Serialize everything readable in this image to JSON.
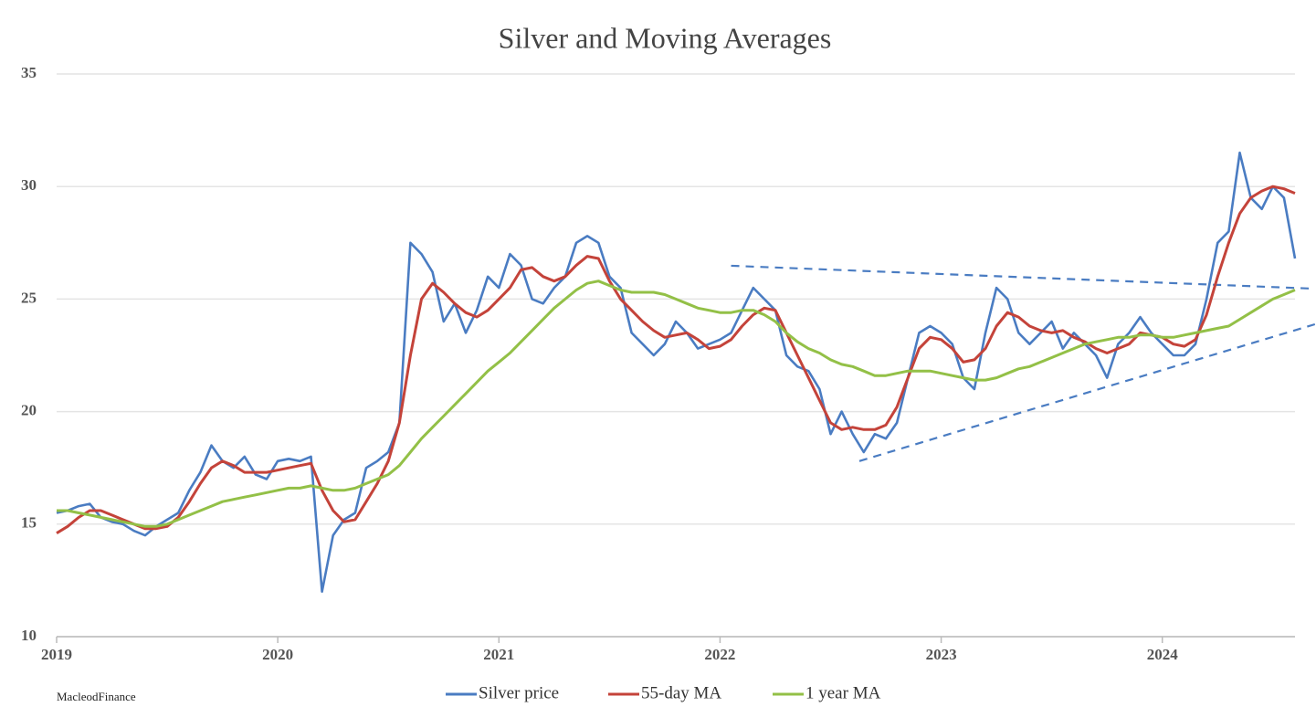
{
  "chart_data": {
    "type": "line",
    "title": "Silver and Moving Averages",
    "source": "MacleodFinance",
    "x": [
      2019.0,
      2019.05,
      2019.1,
      2019.15,
      2019.2,
      2019.25,
      2019.3,
      2019.35,
      2019.4,
      2019.45,
      2019.5,
      2019.55,
      2019.6,
      2019.65,
      2019.7,
      2019.75,
      2019.8,
      2019.85,
      2019.9,
      2019.95,
      2020.0,
      2020.05,
      2020.1,
      2020.15,
      2020.2,
      2020.25,
      2020.3,
      2020.35,
      2020.4,
      2020.45,
      2020.5,
      2020.55,
      2020.6,
      2020.65,
      2020.7,
      2020.75,
      2020.8,
      2020.85,
      2020.9,
      2020.95,
      2021.0,
      2021.05,
      2021.1,
      2021.15,
      2021.2,
      2021.25,
      2021.3,
      2021.35,
      2021.4,
      2021.45,
      2021.5,
      2021.55,
      2021.6,
      2021.65,
      2021.7,
      2021.75,
      2021.8,
      2021.85,
      2021.9,
      2021.95,
      2022.0,
      2022.05,
      2022.1,
      2022.15,
      2022.2,
      2022.25,
      2022.3,
      2022.35,
      2022.4,
      2022.45,
      2022.5,
      2022.55,
      2022.6,
      2022.65,
      2022.7,
      2022.75,
      2022.8,
      2022.85,
      2022.9,
      2022.95,
      2023.0,
      2023.05,
      2023.1,
      2023.15,
      2023.2,
      2023.25,
      2023.3,
      2023.35,
      2023.4,
      2023.45,
      2023.5,
      2023.55,
      2023.6,
      2023.65,
      2023.7,
      2023.75,
      2023.8,
      2023.85,
      2023.9,
      2023.95,
      2024.0,
      2024.05,
      2024.1,
      2024.15,
      2024.2,
      2024.25,
      2024.3,
      2024.35,
      2024.4,
      2024.45,
      2024.5,
      2024.55,
      2024.6
    ],
    "series": [
      {
        "name": "Silver price",
        "color": "#4a7cc2",
        "values": [
          15.5,
          15.6,
          15.8,
          15.9,
          15.3,
          15.1,
          15.0,
          14.7,
          14.5,
          14.9,
          15.2,
          15.5,
          16.5,
          17.3,
          18.5,
          17.8,
          17.5,
          18.0,
          17.2,
          17.0,
          17.8,
          17.9,
          17.8,
          18.0,
          12.0,
          14.5,
          15.2,
          15.5,
          17.5,
          17.8,
          18.2,
          19.5,
          27.5,
          27.0,
          26.2,
          24.0,
          24.8,
          23.5,
          24.5,
          26.0,
          25.5,
          27.0,
          26.5,
          25.0,
          24.8,
          25.5,
          26.0,
          27.5,
          27.8,
          27.5,
          26.0,
          25.5,
          23.5,
          23.0,
          22.5,
          23.0,
          24.0,
          23.5,
          22.8,
          23.0,
          23.2,
          23.5,
          24.5,
          25.5,
          25.0,
          24.5,
          22.5,
          22.0,
          21.8,
          21.0,
          19.0,
          20.0,
          19.0,
          18.2,
          19.0,
          18.8,
          19.5,
          21.5,
          23.5,
          23.8,
          23.5,
          23.0,
          21.5,
          21.0,
          23.5,
          25.5,
          25.0,
          23.5,
          23.0,
          23.5,
          24.0,
          22.8,
          23.5,
          23.0,
          22.5,
          21.5,
          23.0,
          23.5,
          24.2,
          23.5,
          23.0,
          22.5,
          22.5,
          23.0,
          25.0,
          27.5,
          28.0,
          31.5,
          29.5,
          29.0,
          30.0,
          29.5,
          26.8
        ]
      },
      {
        "name": "55-day MA",
        "color": "#c4433a",
        "values": [
          14.6,
          14.9,
          15.3,
          15.6,
          15.6,
          15.4,
          15.2,
          15.0,
          14.8,
          14.8,
          14.9,
          15.3,
          16.0,
          16.8,
          17.5,
          17.8,
          17.6,
          17.3,
          17.3,
          17.3,
          17.4,
          17.5,
          17.6,
          17.7,
          16.5,
          15.6,
          15.1,
          15.2,
          16.0,
          16.8,
          17.8,
          19.5,
          22.5,
          25.0,
          25.7,
          25.3,
          24.8,
          24.4,
          24.2,
          24.5,
          25.0,
          25.5,
          26.3,
          26.4,
          26.0,
          25.8,
          26.0,
          26.5,
          26.9,
          26.8,
          25.8,
          25.0,
          24.5,
          24.0,
          23.6,
          23.3,
          23.4,
          23.5,
          23.2,
          22.8,
          22.9,
          23.2,
          23.8,
          24.3,
          24.6,
          24.5,
          23.5,
          22.5,
          21.5,
          20.5,
          19.5,
          19.2,
          19.3,
          19.2,
          19.2,
          19.4,
          20.2,
          21.5,
          22.8,
          23.3,
          23.2,
          22.8,
          22.2,
          22.3,
          22.8,
          23.8,
          24.4,
          24.2,
          23.8,
          23.6,
          23.5,
          23.6,
          23.3,
          23.1,
          22.8,
          22.6,
          22.8,
          23.0,
          23.5,
          23.4,
          23.3,
          23.0,
          22.9,
          23.2,
          24.3,
          26.0,
          27.5,
          28.8,
          29.5,
          29.8,
          30.0,
          29.9,
          29.7
        ]
      },
      {
        "name": "1 year MA",
        "color": "#93c047",
        "values": [
          15.6,
          15.6,
          15.5,
          15.4,
          15.3,
          15.2,
          15.1,
          15.0,
          14.9,
          14.9,
          15.0,
          15.2,
          15.4,
          15.6,
          15.8,
          16.0,
          16.1,
          16.2,
          16.3,
          16.4,
          16.5,
          16.6,
          16.6,
          16.7,
          16.6,
          16.5,
          16.5,
          16.6,
          16.8,
          17.0,
          17.2,
          17.6,
          18.2,
          18.8,
          19.3,
          19.8,
          20.3,
          20.8,
          21.3,
          21.8,
          22.2,
          22.6,
          23.1,
          23.6,
          24.1,
          24.6,
          25.0,
          25.4,
          25.7,
          25.8,
          25.6,
          25.4,
          25.3,
          25.3,
          25.3,
          25.2,
          25.0,
          24.8,
          24.6,
          24.5,
          24.4,
          24.4,
          24.5,
          24.5,
          24.3,
          24.0,
          23.5,
          23.1,
          22.8,
          22.6,
          22.3,
          22.1,
          22.0,
          21.8,
          21.6,
          21.6,
          21.7,
          21.8,
          21.8,
          21.8,
          21.7,
          21.6,
          21.5,
          21.4,
          21.4,
          21.5,
          21.7,
          21.9,
          22.0,
          22.2,
          22.4,
          22.6,
          22.8,
          23.0,
          23.1,
          23.2,
          23.3,
          23.3,
          23.4,
          23.4,
          23.3,
          23.3,
          23.4,
          23.5,
          23.6,
          23.7,
          23.8,
          24.1,
          24.4,
          24.7,
          25.0,
          25.2,
          25.4
        ]
      }
    ],
    "trendlines": [
      {
        "color": "#4a7cc2",
        "x": [
          2022.05,
          2024.69
        ],
        "y": [
          26.48,
          25.46
        ]
      },
      {
        "color": "#4a7cc2",
        "x": [
          2022.63,
          2024.69
        ],
        "y": [
          17.8,
          23.88
        ]
      }
    ],
    "xlim": [
      2019,
      2024.6
    ],
    "xticks": [
      2019,
      2020,
      2021,
      2022,
      2023,
      2024
    ],
    "ylim": [
      10,
      35
    ],
    "yticks": [
      10,
      15,
      20,
      25,
      30,
      35
    ],
    "grid": true
  }
}
